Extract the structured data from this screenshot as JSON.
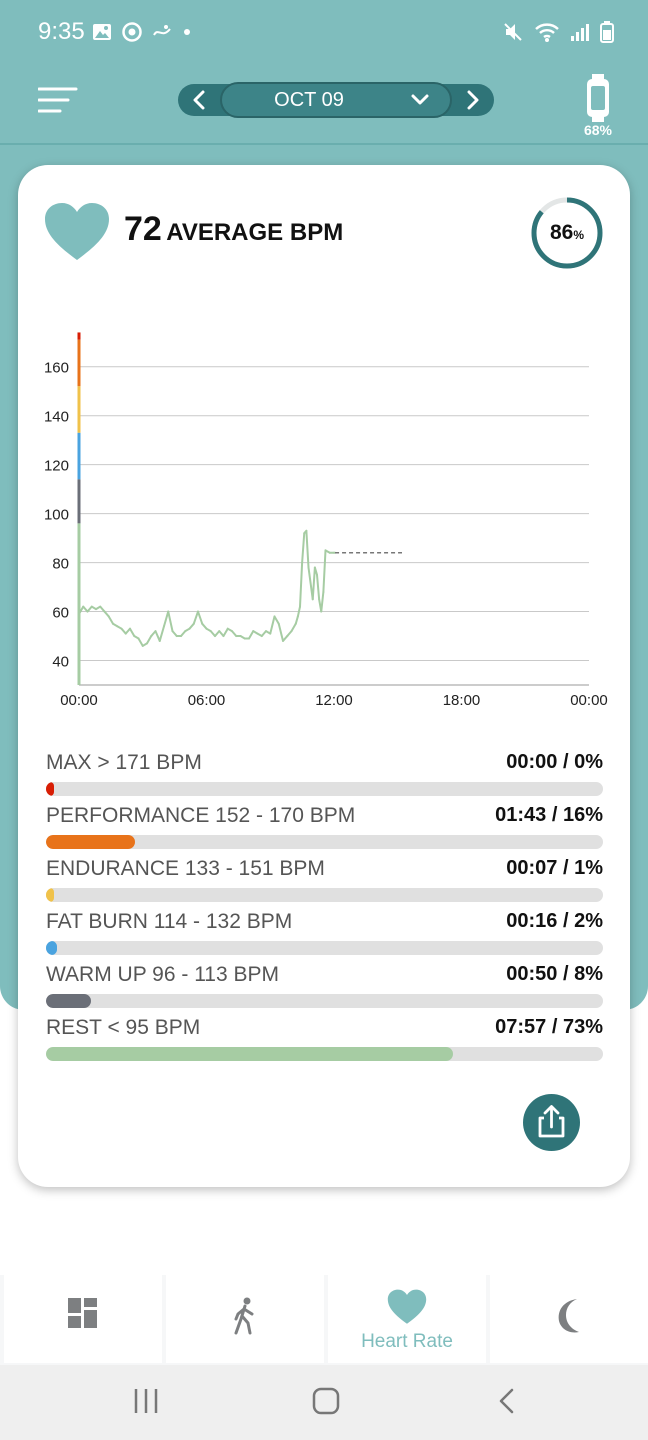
{
  "status_bar": {
    "time": "9:35"
  },
  "header": {
    "date": "OCT 09",
    "device_battery": "68%"
  },
  "summary": {
    "average_bpm": "72",
    "average_label": "AVERAGE BPM",
    "ring_value": "86",
    "ring_unit": "%",
    "ring_fraction": 0.86
  },
  "chart_data": {
    "type": "line",
    "x_ticks": [
      "00:00",
      "06:00",
      "12:00",
      "18:00",
      "00:00"
    ],
    "y_ticks": [
      40,
      60,
      80,
      100,
      120,
      140,
      160
    ],
    "xlim": [
      0,
      24
    ],
    "ylim": [
      30,
      175
    ],
    "grid": true,
    "zone_colors": [
      "#d81e05",
      "#e8731a",
      "#f0c24a",
      "#4aa3df",
      "#6b6f78",
      "#a6cca3"
    ],
    "series": [
      {
        "points": [
          [
            0,
            59
          ],
          [
            0.2,
            62
          ],
          [
            0.4,
            60
          ],
          [
            0.6,
            62
          ],
          [
            0.8,
            61
          ],
          [
            1.0,
            62
          ],
          [
            1.2,
            60
          ],
          [
            1.4,
            58
          ],
          [
            1.6,
            55
          ],
          [
            1.8,
            54
          ],
          [
            2.0,
            53
          ],
          [
            2.2,
            51
          ],
          [
            2.4,
            53
          ],
          [
            2.6,
            50
          ],
          [
            2.8,
            49
          ],
          [
            3.0,
            46
          ],
          [
            3.2,
            47
          ],
          [
            3.4,
            50
          ],
          [
            3.6,
            52
          ],
          [
            3.8,
            48
          ],
          [
            4.0,
            54
          ],
          [
            4.2,
            60
          ],
          [
            4.4,
            52
          ],
          [
            4.6,
            50
          ],
          [
            4.8,
            50
          ],
          [
            5.0,
            52
          ],
          [
            5.2,
            53
          ],
          [
            5.4,
            55
          ],
          [
            5.6,
            60
          ],
          [
            5.8,
            55
          ],
          [
            6.0,
            53
          ],
          [
            6.2,
            52
          ],
          [
            6.4,
            50
          ],
          [
            6.6,
            52
          ],
          [
            6.8,
            50
          ],
          [
            7.0,
            53
          ],
          [
            7.2,
            52
          ],
          [
            7.4,
            50
          ],
          [
            7.6,
            50
          ],
          [
            7.8,
            49
          ],
          [
            8.0,
            49
          ],
          [
            8.2,
            52
          ],
          [
            8.4,
            51
          ],
          [
            8.6,
            50
          ],
          [
            8.8,
            52
          ],
          [
            9.0,
            51
          ],
          [
            9.2,
            58
          ],
          [
            9.4,
            55
          ],
          [
            9.6,
            48
          ],
          [
            9.8,
            50
          ],
          [
            10.0,
            52
          ],
          [
            10.2,
            55
          ],
          [
            10.3,
            58
          ],
          [
            10.4,
            62
          ],
          [
            10.5,
            80
          ],
          [
            10.6,
            92
          ],
          [
            10.7,
            93
          ],
          [
            10.8,
            78
          ],
          [
            11.0,
            65
          ],
          [
            11.1,
            78
          ],
          [
            11.2,
            75
          ],
          [
            11.3,
            65
          ],
          [
            11.4,
            60
          ],
          [
            11.5,
            68
          ],
          [
            11.6,
            85
          ],
          [
            11.8,
            84
          ],
          [
            12.0,
            84
          ],
          [
            12.05,
            84
          ]
        ],
        "dashed_gap": [
          [
            12.05,
            84
          ],
          [
            15.2,
            84
          ]
        ]
      }
    ]
  },
  "zones": [
    {
      "label": "MAX > 171 BPM",
      "value": "00:00 / 0%",
      "percent": 0,
      "color": "#d81e05"
    },
    {
      "label": "PERFORMANCE 152 - 170 BPM",
      "value": "01:43 / 16%",
      "percent": 16,
      "color": "#e8731a"
    },
    {
      "label": "ENDURANCE 133 - 151 BPM",
      "value": "00:07 / 1%",
      "percent": 1,
      "color": "#f0c24a"
    },
    {
      "label": "FAT BURN 114 - 132 BPM",
      "value": "00:16 / 2%",
      "percent": 2,
      "color": "#4aa3df"
    },
    {
      "label": "WARM UP 96 - 113 BPM",
      "value": "00:50 / 8%",
      "percent": 8,
      "color": "#6b6f78"
    },
    {
      "label": "REST < 95 BPM",
      "value": "07:57 / 73%",
      "percent": 73,
      "color": "#a6cca3"
    }
  ],
  "bottom_nav": {
    "tabs": [
      {
        "icon": "dashboard-icon",
        "label": ""
      },
      {
        "icon": "walk-icon",
        "label": ""
      },
      {
        "icon": "heart-icon",
        "label": "Heart Rate"
      },
      {
        "icon": "moon-icon",
        "label": ""
      }
    ]
  },
  "colors": {
    "teal": "#7fbdbd",
    "dark_teal": "#2f7478",
    "heart": "#7fbdbd"
  }
}
